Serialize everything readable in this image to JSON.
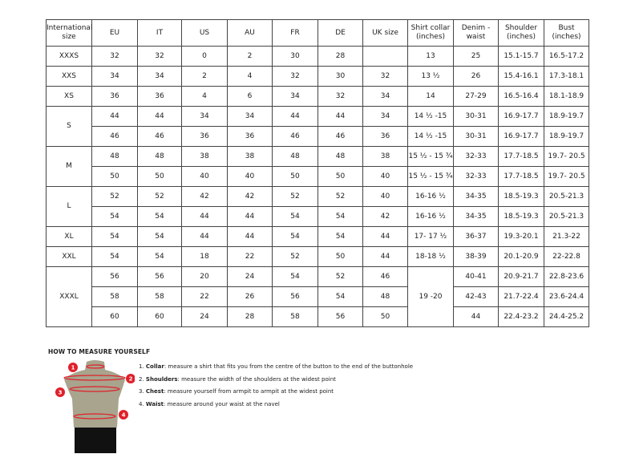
{
  "table": {
    "headers": [
      "International size",
      "EU",
      "IT",
      "US",
      "AU",
      "FR",
      "DE",
      "UK size",
      "Shirt collar (inches)",
      "Denim - waist",
      "Shoulder (inches)",
      "Bust (inches)"
    ],
    "groups": [
      {
        "size": "XXXS",
        "rows": [
          [
            "32",
            "32",
            "0",
            "2",
            "30",
            "28",
            "",
            "13",
            "25",
            "15.1-15.7",
            "16.5-17.2"
          ]
        ]
      },
      {
        "size": "XXS",
        "rows": [
          [
            "34",
            "34",
            "2",
            "4",
            "32",
            "30",
            "32",
            "13 ½",
            "26",
            "15.4-16.1",
            "17.3-18.1"
          ]
        ]
      },
      {
        "size": "XS",
        "rows": [
          [
            "36",
            "36",
            "4",
            "6",
            "34",
            "32",
            "34",
            "14",
            "27-29",
            "16.5-16.4",
            "18.1-18.9"
          ]
        ]
      },
      {
        "size": "S",
        "rows": [
          [
            "44",
            "44",
            "34",
            "34",
            "44",
            "44",
            "34",
            "14 ½ -15",
            "30-31",
            "16.9-17.7",
            "18.9-19.7"
          ],
          [
            "46",
            "46",
            "36",
            "36",
            "46",
            "46",
            "36",
            "14 ½ -15",
            "30-31",
            "16.9-17.7",
            "18.9-19.7"
          ]
        ]
      },
      {
        "size": "M",
        "rows": [
          [
            "48",
            "48",
            "38",
            "38",
            "48",
            "48",
            "38",
            "15 ½ - 15 ¾",
            "32-33",
            "17.7-18.5",
            "19.7- 20.5"
          ],
          [
            "50",
            "50",
            "40",
            "40",
            "50",
            "50",
            "40",
            "15 ½ - 15 ¾",
            "32-33",
            "17.7-18.5",
            "19.7- 20.5"
          ]
        ]
      },
      {
        "size": "L",
        "rows": [
          [
            "52",
            "52",
            "42",
            "42",
            "52",
            "52",
            "40",
            "16-16 ½",
            "34-35",
            "18.5-19.3",
            "20.5-21.3"
          ],
          [
            "54",
            "54",
            "44",
            "44",
            "54",
            "54",
            "42",
            "16-16 ½",
            "34-35",
            "18.5-19.3",
            "20.5-21.3"
          ]
        ]
      },
      {
        "size": "XL",
        "rows": [
          [
            "54",
            "54",
            "44",
            "44",
            "54",
            "54",
            "44",
            "17- 17 ½",
            "36-37",
            "19.3-20.1",
            "21.3-22"
          ]
        ]
      },
      {
        "size": "XXL",
        "rows": [
          [
            "54",
            "54",
            "18",
            "22",
            "52",
            "50",
            "44",
            "18-18 ½",
            "38-39",
            "20.1-20.9",
            "22-22.8"
          ]
        ]
      },
      {
        "size": "XXXL",
        "rows": [
          [
            "56",
            "56",
            "20",
            "24",
            "54",
            "52",
            "46",
            "19 -20",
            "40-41",
            "20.9-21.7",
            "22.8-23.6"
          ],
          [
            "58",
            "58",
            "22",
            "26",
            "56",
            "54",
            "48",
            null,
            "42-43",
            "21.7-22.4",
            "23.6-24.4"
          ],
          [
            "60",
            "60",
            "24",
            "28",
            "58",
            "56",
            "50",
            null,
            "44",
            "22.4-23.2",
            "24.4-25.2"
          ]
        ]
      }
    ]
  },
  "guide": {
    "title": "HOW TO MEASURE YOURSELF",
    "markers": [
      "1",
      "2",
      "3",
      "4"
    ],
    "steps": [
      {
        "num": "1.",
        "term": "Collar",
        "text": ": measure a shirt that fits you from the centre of the button to the end of the buttonhole"
      },
      {
        "num": "2.",
        "term": "Shoulders",
        "text": ": measure the width of the shoulders at the widest point"
      },
      {
        "num": "3.",
        "term": "Chest",
        "text": ": measure yourself from armpit to armpit at the widest point"
      },
      {
        "num": "4.",
        "term": "Waist",
        "text": ": measure around your waist at the navel"
      }
    ],
    "accent": "#e0202a",
    "torso_color": "#a8a48e"
  }
}
